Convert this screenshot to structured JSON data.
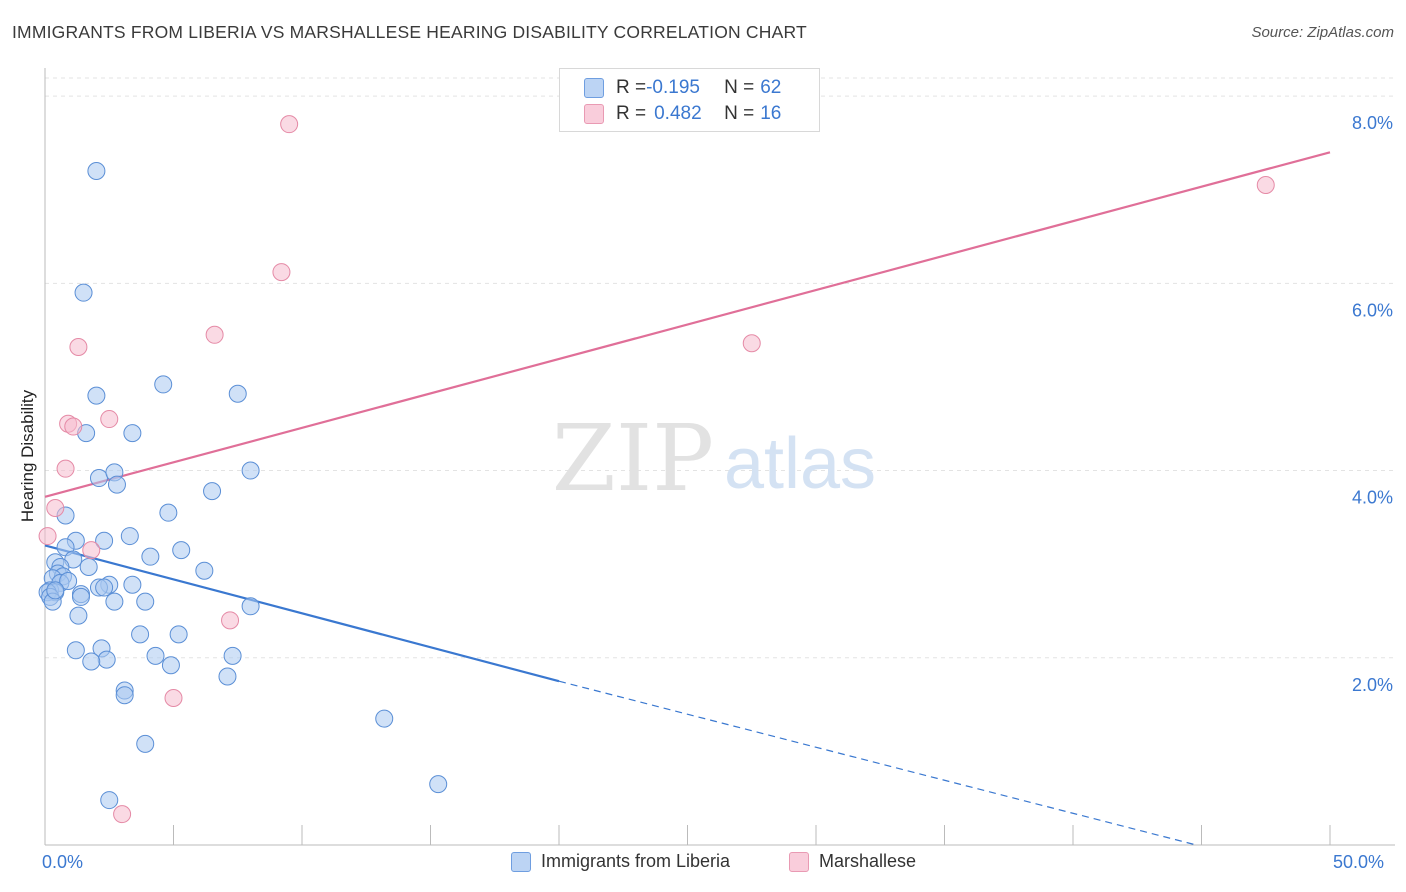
{
  "header": {
    "title": "IMMIGRANTS FROM LIBERIA VS MARSHALLESE HEARING DISABILITY CORRELATION CHART",
    "source": "Source: ZipAtlas.com"
  },
  "watermark": {
    "zip": "ZIP",
    "atlas": "atlas"
  },
  "legend_top": {
    "rows": [
      {
        "r_label": "R = ",
        "r_value": "-0.195",
        "n_label": "N = ",
        "n_value": "62"
      },
      {
        "r_label": "R = ",
        "r_value": "0.482",
        "n_label": "N = ",
        "n_value": "16"
      }
    ]
  },
  "legend_bottom": {
    "series1": "Immigrants from Liberia",
    "series2": "Marshallese"
  },
  "axis": {
    "x_min_label": "0.0%",
    "x_max_label": "50.0%"
  },
  "colors": {
    "blue_fill": "#a9c8f0",
    "blue_stroke": "#5b8fd6",
    "blue_line": "#3a78d0",
    "pink_fill": "#f6bccd",
    "pink_stroke": "#e58aa6",
    "pink_line": "#e06f98",
    "tick_label": "#3b78d0"
  },
  "chart_data": {
    "type": "scatter",
    "title": "IMMIGRANTS FROM LIBERIA VS MARSHALLESE HEARING DISABILITY CORRELATION CHART",
    "xlabel": "",
    "ylabel": "Hearing Disability",
    "xlim": [
      0,
      50
    ],
    "ylim": [
      0,
      8.3
    ],
    "y_ticks": [
      2.0,
      4.0,
      6.0,
      8.0
    ],
    "y_tick_labels": [
      "2.0%",
      "4.0%",
      "6.0%",
      "8.0%"
    ],
    "grid": true,
    "series": [
      {
        "name": "Immigrants from Liberia",
        "R": -0.195,
        "N": 62,
        "trend": {
          "x0": 0,
          "y0": 3.2,
          "x1": 20,
          "y1": 1.75,
          "dashed_to_x": 44.8,
          "dashed_to_y": 0.0
        },
        "points": [
          [
            2.0,
            7.2
          ],
          [
            1.5,
            5.9
          ],
          [
            4.6,
            4.92
          ],
          [
            7.5,
            4.82
          ],
          [
            2.0,
            4.8
          ],
          [
            1.6,
            4.4
          ],
          [
            3.4,
            4.4
          ],
          [
            2.1,
            3.92
          ],
          [
            8.0,
            4.0
          ],
          [
            2.7,
            3.98
          ],
          [
            2.8,
            3.85
          ],
          [
            6.5,
            3.78
          ],
          [
            0.8,
            3.52
          ],
          [
            4.8,
            3.55
          ],
          [
            3.3,
            3.3
          ],
          [
            2.3,
            3.25
          ],
          [
            1.2,
            3.25
          ],
          [
            0.8,
            3.18
          ],
          [
            5.3,
            3.15
          ],
          [
            4.1,
            3.08
          ],
          [
            1.1,
            3.05
          ],
          [
            0.4,
            3.02
          ],
          [
            0.6,
            2.97
          ],
          [
            1.7,
            2.97
          ],
          [
            6.2,
            2.93
          ],
          [
            0.5,
            2.9
          ],
          [
            0.7,
            2.87
          ],
          [
            0.3,
            2.85
          ],
          [
            0.6,
            2.8
          ],
          [
            0.9,
            2.82
          ],
          [
            3.4,
            2.78
          ],
          [
            2.5,
            2.78
          ],
          [
            2.1,
            2.75
          ],
          [
            2.3,
            2.75
          ],
          [
            0.2,
            2.72
          ],
          [
            0.4,
            2.7
          ],
          [
            1.4,
            2.68
          ],
          [
            0.1,
            2.7
          ],
          [
            0.2,
            2.65
          ],
          [
            0.3,
            2.6
          ],
          [
            2.7,
            2.6
          ],
          [
            3.9,
            2.6
          ],
          [
            1.4,
            2.65
          ],
          [
            8.0,
            2.55
          ],
          [
            1.3,
            2.45
          ],
          [
            3.7,
            2.25
          ],
          [
            5.2,
            2.25
          ],
          [
            2.2,
            2.1
          ],
          [
            1.2,
            2.08
          ],
          [
            7.3,
            2.02
          ],
          [
            4.3,
            2.02
          ],
          [
            2.4,
            1.98
          ],
          [
            1.8,
            1.96
          ],
          [
            4.9,
            1.92
          ],
          [
            7.1,
            1.8
          ],
          [
            3.1,
            1.65
          ],
          [
            3.1,
            1.6
          ],
          [
            13.2,
            1.35
          ],
          [
            3.9,
            1.08
          ],
          [
            15.3,
            0.65
          ],
          [
            2.5,
            0.48
          ],
          [
            0.4,
            2.72
          ]
        ]
      },
      {
        "name": "Marshallese",
        "R": 0.482,
        "N": 16,
        "trend": {
          "x0": 0,
          "y0": 3.72,
          "x1": 50,
          "y1": 7.4
        },
        "points": [
          [
            9.5,
            7.7
          ],
          [
            47.5,
            7.05
          ],
          [
            9.2,
            6.12
          ],
          [
            6.6,
            5.45
          ],
          [
            1.3,
            5.32
          ],
          [
            27.5,
            5.36
          ],
          [
            2.5,
            4.55
          ],
          [
            0.9,
            4.5
          ],
          [
            1.1,
            4.47
          ],
          [
            0.8,
            4.02
          ],
          [
            0.4,
            3.6
          ],
          [
            0.1,
            3.3
          ],
          [
            1.8,
            3.15
          ],
          [
            7.2,
            2.4
          ],
          [
            5.0,
            1.57
          ],
          [
            3.0,
            0.33
          ]
        ]
      }
    ]
  }
}
